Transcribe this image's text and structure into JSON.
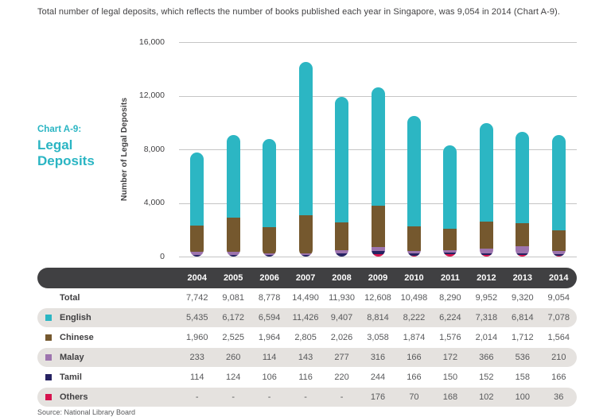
{
  "page": {
    "intro": "Total number of legal deposits, which reflects the number of books published each year in Singapore, was 9,054 in 2014 (Chart A-9).",
    "source": "Source: National Library Board"
  },
  "chart_label": {
    "prefix": "Chart A-9:",
    "title_line1": "Legal",
    "title_line2": "Deposits"
  },
  "colors": {
    "accent_teal": "#2ab5c3",
    "english": "#2cb6c3",
    "chinese": "#75582e",
    "malay": "#9d74ae",
    "tamil": "#262262",
    "others": "#d6134e",
    "header_dark": "#404042",
    "row_gray": "#e5e2df",
    "gridline": "#c5c5c5"
  },
  "chart_data": {
    "type": "bar",
    "stacked": true,
    "title": "Chart A-9: Legal Deposits",
    "ylabel": "Number of Legal Deposits",
    "xlabel": "",
    "ylim": [
      0,
      16000
    ],
    "ytick_labels": [
      "0",
      "4,000",
      "8,000",
      "12,000",
      "16,000"
    ],
    "ytick_values": [
      0,
      4000,
      8000,
      12000,
      16000
    ],
    "grid": "horizontal",
    "legend_position": "table-below",
    "categories": [
      "2004",
      "2005",
      "2006",
      "2007",
      "2008",
      "2009",
      "2010",
      "2011",
      "2012",
      "2013",
      "2014"
    ],
    "series": [
      {
        "name": "English",
        "color": "#2cb6c3",
        "values": [
          5435,
          6172,
          6594,
          11426,
          9407,
          8814,
          8222,
          6224,
          7318,
          6814,
          7078
        ]
      },
      {
        "name": "Chinese",
        "color": "#75582e",
        "values": [
          1960,
          2525,
          1964,
          2805,
          2026,
          3058,
          1874,
          1576,
          2014,
          1712,
          1564
        ]
      },
      {
        "name": "Malay",
        "color": "#9d74ae",
        "values": [
          233,
          260,
          114,
          143,
          277,
          316,
          166,
          172,
          366,
          536,
          210
        ]
      },
      {
        "name": "Tamil",
        "color": "#262262",
        "values": [
          114,
          124,
          106,
          116,
          220,
          244,
          166,
          150,
          152,
          158,
          166
        ]
      },
      {
        "name": "Others",
        "color": "#d6134e",
        "values": [
          0,
          0,
          0,
          0,
          0,
          176,
          70,
          168,
          102,
          100,
          36
        ]
      }
    ],
    "totals": [
      7742,
      9081,
      8778,
      14490,
      11930,
      12608,
      10498,
      8290,
      9952,
      9320,
      9054
    ],
    "stack_order_bottom_to_top": [
      "Others",
      "Tamil",
      "Malay",
      "Chinese",
      "English"
    ]
  },
  "table": {
    "years": [
      "2004",
      "2005",
      "2006",
      "2007",
      "2008",
      "2009",
      "2010",
      "2011",
      "2012",
      "2013",
      "2014"
    ],
    "rows": [
      {
        "label": "Total",
        "swatch": null,
        "shaded": false,
        "values": [
          "7,742",
          "9,081",
          "8,778",
          "14,490",
          "11,930",
          "12,608",
          "10,498",
          "8,290",
          "9,952",
          "9,320",
          "9,054"
        ]
      },
      {
        "label": "English",
        "swatch": "#2cb6c3",
        "shaded": true,
        "values": [
          "5,435",
          "6,172",
          "6,594",
          "11,426",
          "9,407",
          "8,814",
          "8,222",
          "6,224",
          "7,318",
          "6,814",
          "7,078"
        ]
      },
      {
        "label": "Chinese",
        "swatch": "#75582e",
        "shaded": false,
        "values": [
          "1,960",
          "2,525",
          "1,964",
          "2,805",
          "2,026",
          "3,058",
          "1,874",
          "1,576",
          "2,014",
          "1,712",
          "1,564"
        ]
      },
      {
        "label": "Malay",
        "swatch": "#9d74ae",
        "shaded": true,
        "values": [
          "233",
          "260",
          "114",
          "143",
          "277",
          "316",
          "166",
          "172",
          "366",
          "536",
          "210"
        ]
      },
      {
        "label": "Tamil",
        "swatch": "#262262",
        "shaded": false,
        "values": [
          "114",
          "124",
          "106",
          "116",
          "220",
          "244",
          "166",
          "150",
          "152",
          "158",
          "166"
        ]
      },
      {
        "label": "Others",
        "swatch": "#d6134e",
        "shaded": true,
        "values": [
          "-",
          "-",
          "-",
          "-",
          "-",
          "176",
          "70",
          "168",
          "102",
          "100",
          "36"
        ]
      }
    ]
  }
}
